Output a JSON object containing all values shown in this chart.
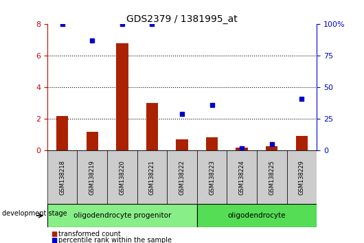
{
  "title": "GDS2379 / 1381995_at",
  "samples": [
    "GSM138218",
    "GSM138219",
    "GSM138220",
    "GSM138221",
    "GSM138222",
    "GSM138223",
    "GSM138224",
    "GSM138225",
    "GSM138229"
  ],
  "transformed_count": [
    2.2,
    1.2,
    6.8,
    3.0,
    0.7,
    0.85,
    0.2,
    0.3,
    0.95
  ],
  "percentile_rank": [
    100,
    87,
    100,
    100,
    29,
    36,
    2,
    5,
    41
  ],
  "ylim_left": [
    0,
    8
  ],
  "ylim_right": [
    0,
    100
  ],
  "yticks_left": [
    0,
    2,
    4,
    6,
    8
  ],
  "yticks_right": [
    0,
    25,
    50,
    75,
    100
  ],
  "ytick_labels_right": [
    "0",
    "25",
    "50",
    "75",
    "100%"
  ],
  "bar_color": "#aa2200",
  "dot_color": "#0000cc",
  "bar_width": 0.4,
  "groups": [
    {
      "label": "oligodendrocyte progenitor",
      "start": 0,
      "end": 5,
      "color": "#88ee88"
    },
    {
      "label": "oligodendrocyte",
      "start": 5,
      "end": 9,
      "color": "#55dd55"
    }
  ],
  "stage_label": "development stage",
  "legend_items": [
    {
      "color": "#aa2200",
      "label": "transformed count"
    },
    {
      "color": "#0000cc",
      "label": "percentile rank within the sample"
    }
  ],
  "background_color": "#ffffff",
  "sample_box_color": "#cccccc",
  "grid_yticks": [
    2,
    4,
    6
  ],
  "left_axis_color": "#cc0000",
  "right_axis_color": "#0000cc"
}
